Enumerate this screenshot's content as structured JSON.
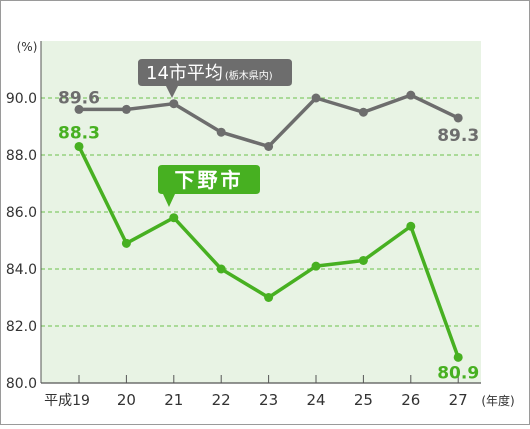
{
  "chart_data": {
    "type": "line",
    "ylabel": "(%)",
    "xunit": "(年度)",
    "ylim": [
      80.0,
      92.0
    ],
    "yticks": [
      "90.0",
      "88.0",
      "86.0",
      "84.0",
      "82.0",
      "80.0"
    ],
    "categories": [
      "平成19",
      "20",
      "21",
      "22",
      "23",
      "24",
      "25",
      "26",
      "27"
    ],
    "grid": "horizontal-dashed",
    "series": [
      {
        "name": "14市平均",
        "subname": "(栃木県内)",
        "color": "#6d6d6d",
        "values": [
          89.6,
          89.6,
          89.8,
          88.8,
          88.3,
          90.0,
          89.5,
          90.1,
          89.3
        ],
        "labels": [
          "89.6",
          "",
          "",
          "",
          "",
          "",
          "",
          "",
          "89.3"
        ]
      },
      {
        "name": "下野市",
        "color": "#47b021",
        "values": [
          88.3,
          84.9,
          85.8,
          84.0,
          83.0,
          84.1,
          84.3,
          85.5,
          80.9
        ],
        "labels": [
          "88.3",
          "",
          "",
          "",
          "",
          "",
          "",
          "",
          "80.9"
        ]
      }
    ],
    "colors": {
      "plot_background": "#e8f3e4",
      "gridline": "#6dc24b",
      "callout_gray": "#6d6d6d",
      "callout_green": "#47b021"
    }
  }
}
